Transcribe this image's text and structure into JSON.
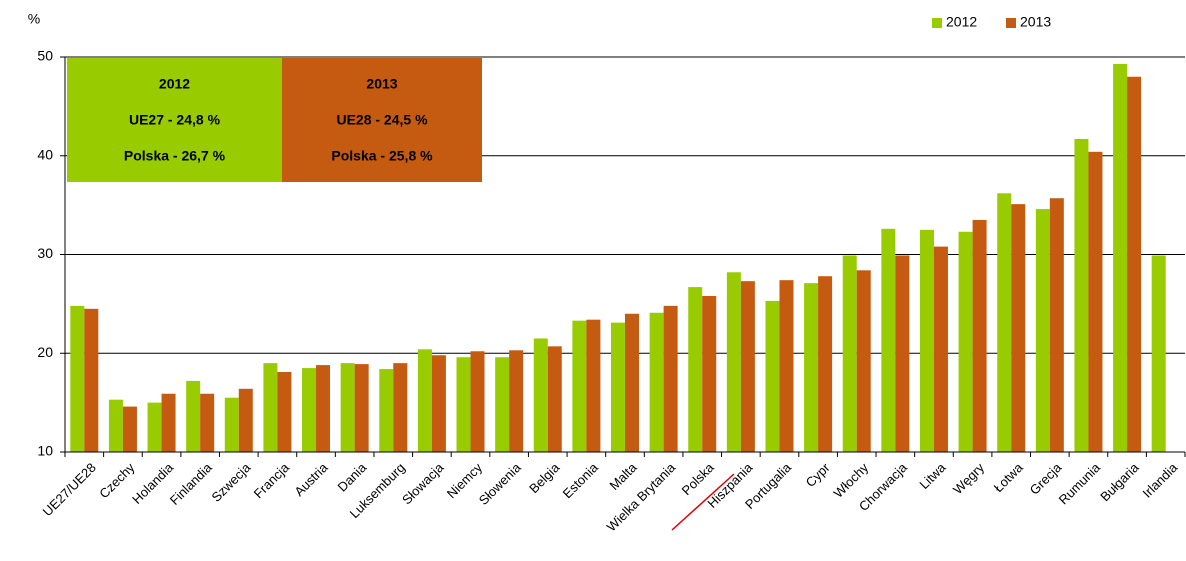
{
  "chart_data": {
    "type": "bar",
    "y_label": "%",
    "categories": [
      "UE27/UE28",
      "Czechy",
      "Holandia",
      "Finlandia",
      "Szwecja",
      "Francja",
      "Austria",
      "Dania",
      "Luksemburg",
      "Słowacja",
      "Niemcy",
      "Słowenia",
      "Belgia",
      "Estonia",
      "Malta",
      "Wielka Brytania",
      "Polska",
      "Hiszpania",
      "Portugalia",
      "Cypr",
      "Włochy",
      "Chorwacja",
      "Litwa",
      "Węgry",
      "Łotwa",
      "Grecja",
      "Rumunia",
      "Bułgaria",
      "Irlandia"
    ],
    "series": [
      {
        "name": "2012",
        "color": "#99cc00",
        "values": [
          24.8,
          15.3,
          15.0,
          17.2,
          15.5,
          19.0,
          18.5,
          19.0,
          18.4,
          20.4,
          19.6,
          19.6,
          21.5,
          23.3,
          23.1,
          24.1,
          26.7,
          28.2,
          25.3,
          27.1,
          29.9,
          32.6,
          32.5,
          32.3,
          36.2,
          34.6,
          41.7,
          49.3,
          29.9
        ]
      },
      {
        "name": "2013",
        "color": "#c55a11",
        "values": [
          24.5,
          14.6,
          15.9,
          15.9,
          16.4,
          18.1,
          18.8,
          18.9,
          19.0,
          19.8,
          20.2,
          20.3,
          20.7,
          23.4,
          24.0,
          24.8,
          25.8,
          27.3,
          27.4,
          27.8,
          28.4,
          29.9,
          30.8,
          33.5,
          35.1,
          35.7,
          40.4,
          48.0,
          null
        ]
      }
    ],
    "annotations": [
      {
        "lines": [
          "2012",
          "UE27 - 24,8 %",
          "Polska - 26,7 %"
        ]
      },
      {
        "lines": [
          "2013",
          "UE28 - 24,5 %",
          "Polska - 25,8 %"
        ]
      }
    ],
    "ylim": [
      10,
      50
    ],
    "yticks": [
      10,
      20,
      30,
      40,
      50
    ],
    "grid": true,
    "legend": "top-right"
  }
}
